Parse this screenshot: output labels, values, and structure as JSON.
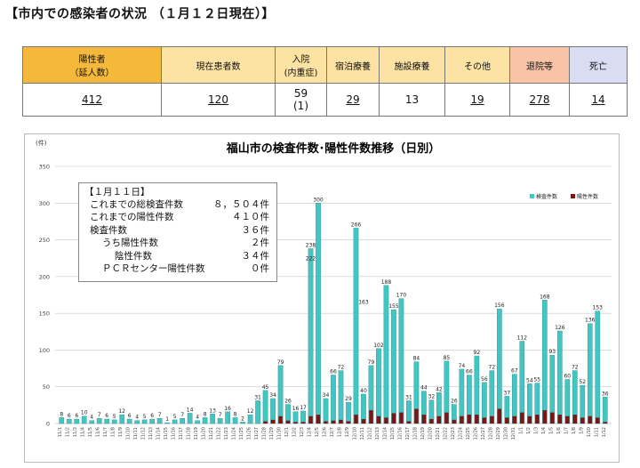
{
  "page_title": "【市内での感染者の状況 （１月１２日現在）】",
  "summary": {
    "headers": [
      {
        "label": "陽性者\n（延人数）",
        "bg": "#f4b83a"
      },
      {
        "label": "現在患者数",
        "bg": "#fce3a4"
      },
      {
        "label": "入院\n(内重症)",
        "bg": "#fce3a4"
      },
      {
        "label": "宿泊療養",
        "bg": "#fce3a4"
      },
      {
        "label": "施設療養",
        "bg": "#fce3a4"
      },
      {
        "label": "その他",
        "bg": "#fce3a4"
      },
      {
        "label": "退院等",
        "bg": "#f8c3a6"
      },
      {
        "label": "死亡",
        "bg": "#d9dcf2"
      }
    ],
    "values": [
      {
        "value": "412",
        "underline": true
      },
      {
        "value": "120",
        "underline": true
      },
      {
        "value": "59\n(1)",
        "underline": false
      },
      {
        "value": "29",
        "underline": true
      },
      {
        "value": "13",
        "underline": false
      },
      {
        "value": "19",
        "underline": true
      },
      {
        "value": "278",
        "underline": true
      },
      {
        "value": "14",
        "underline": true
      }
    ]
  },
  "info_box": {
    "heading": "【１月１１日】",
    "lines": [
      {
        "label": "これまでの総検査件数",
        "value": "８，５０４件",
        "indent": 0
      },
      {
        "label": "これまでの陽性件数",
        "value": "４１０件",
        "indent": 0
      },
      {
        "label": "検査件数",
        "value": "３６件",
        "indent": 0
      },
      {
        "label": "うち陽性件数",
        "value": "２件",
        "indent": 1
      },
      {
        "label": "陰性件数",
        "value": "３４件",
        "indent": 2
      },
      {
        "label": "ＰＣＲセンター陽性件数",
        "value": "０件",
        "indent": 1
      }
    ]
  },
  "chart_data": {
    "type": "bar",
    "title": "福山市の検査件数･陽性件数推移（日別）",
    "ylabel": "(件)",
    "ylim": [
      0,
      350
    ],
    "yticks": [
      0,
      50,
      100,
      150,
      200,
      250,
      300,
      350
    ],
    "grid": true,
    "legend_position": "top-right",
    "series": [
      {
        "name": "検査件数",
        "color": "#43c6c3",
        "values": [
          8,
          6,
          6,
          10,
          4,
          7,
          6,
          5,
          12,
          6,
          4,
          5,
          6,
          7,
          1,
          5,
          7,
          14,
          4,
          8,
          13,
          7,
          16,
          8,
          2,
          12,
          31,
          45,
          34,
          79,
          26,
          16,
          17,
          238,
          300,
          34,
          66,
          72,
          29,
          266,
          40,
          79,
          102,
          188,
          155,
          170,
          31,
          84,
          44,
          32,
          42,
          85,
          26,
          74,
          66,
          92,
          56,
          72,
          156,
          37,
          67,
          112,
          54,
          55,
          168,
          93,
          126,
          60,
          72,
          52,
          136,
          153,
          36
        ]
      },
      {
        "name": "陽性件数",
        "color": "#7a1616",
        "values": [
          0,
          0,
          0,
          0,
          0,
          0,
          0,
          0,
          0,
          0,
          0,
          0,
          0,
          0,
          0,
          0,
          0,
          0,
          0,
          0,
          0,
          0,
          0,
          0,
          0,
          0,
          0,
          3,
          5,
          10,
          4,
          2,
          2,
          10,
          12,
          3,
          4,
          5,
          3,
          12,
          6,
          18,
          10,
          8,
          14,
          15,
          3,
          20,
          12,
          6,
          10,
          15,
          5,
          10,
          12,
          12,
          8,
          10,
          20,
          8,
          10,
          15,
          10,
          12,
          18,
          15,
          12,
          10,
          12,
          8,
          10,
          8,
          2
        ]
      }
    ],
    "bar_labels": [
      "8",
      "6",
      "6",
      "10",
      "4",
      "7",
      "6",
      "5",
      "12",
      "6",
      "4",
      "5",
      "6",
      "7",
      "1",
      "5",
      "7",
      "14",
      "4",
      "8",
      "13",
      "7",
      "16",
      "8",
      "2",
      "12",
      "31",
      "45",
      "34",
      "79",
      "26",
      "16",
      "17",
      "238",
      "300",
      "34",
      "66",
      "72",
      "29",
      "266",
      "40",
      "79",
      "102",
      "188",
      "155",
      "170",
      "31",
      "84",
      "44",
      "32",
      "42",
      "85",
      "26",
      "74",
      "66",
      "92",
      "56",
      "72",
      "156",
      "37",
      "67",
      "112",
      "54",
      "55",
      "168",
      "93",
      "126",
      "60",
      "72",
      "52",
      "136",
      "153",
      "36"
    ],
    "inner_labels": [
      {
        "index": 33,
        "text": "222"
      },
      {
        "index": 40,
        "text": "163"
      }
    ],
    "categories": [
      "11/1",
      "11/2",
      "11/3",
      "11/4",
      "11/5",
      "11/6",
      "11/7",
      "11/8",
      "11/9",
      "11/10",
      "11/11",
      "11/12",
      "11/13",
      "11/14",
      "11/15",
      "11/16",
      "11/17",
      "11/18",
      "11/19",
      "11/20",
      "11/21",
      "11/22",
      "11/23",
      "11/24",
      "11/25",
      "11/26",
      "11/27",
      "11/28",
      "11/29",
      "11/30",
      "12/1",
      "12/2",
      "12/3",
      "12/4",
      "12/5",
      "12/6",
      "12/7",
      "12/8",
      "12/9",
      "12/10",
      "12/11",
      "12/12",
      "12/13",
      "12/14",
      "12/15",
      "12/16",
      "12/17",
      "12/18",
      "12/19",
      "12/20",
      "12/21",
      "12/22",
      "12/23",
      "12/24",
      "12/25",
      "12/26",
      "12/27",
      "12/28",
      "12/29",
      "12/30",
      "12/31",
      "1/1",
      "1/2",
      "1/3",
      "1/4",
      "1/5",
      "1/6",
      "1/7",
      "1/8",
      "1/9",
      "1/10",
      "1/11",
      "1/12"
    ]
  }
}
